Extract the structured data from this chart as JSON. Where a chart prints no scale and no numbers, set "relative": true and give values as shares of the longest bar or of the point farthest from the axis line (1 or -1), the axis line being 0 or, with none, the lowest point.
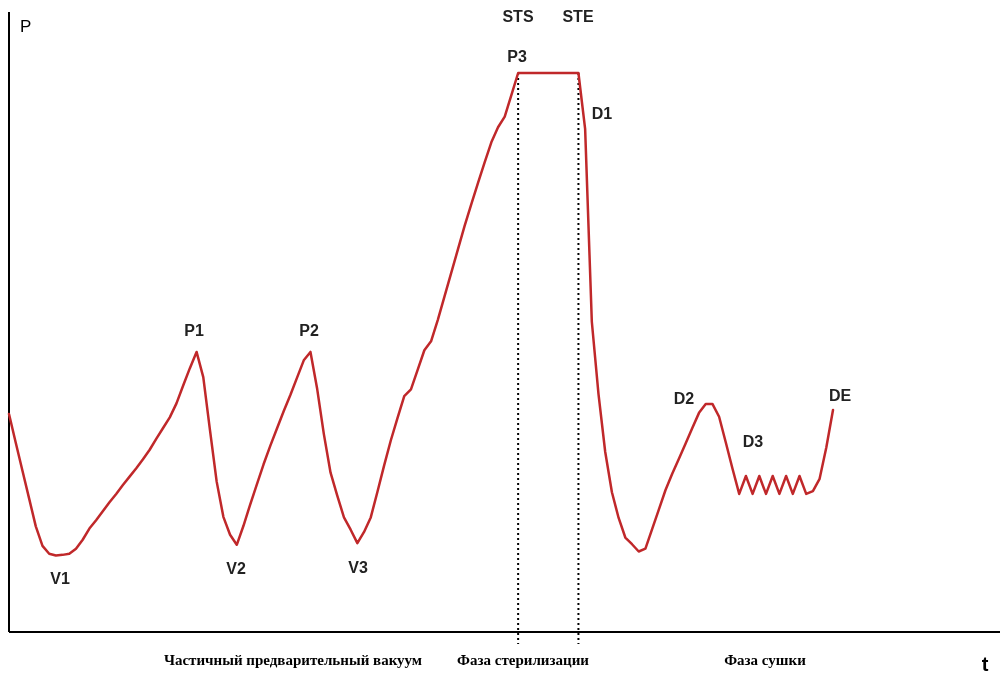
{
  "chart_data": {
    "type": "line",
    "relative": true,
    "ylabel": "P",
    "marker": "none",
    "line_style": "solid",
    "categories": [
      null,
      null,
      null,
      null,
      null,
      null,
      null,
      null,
      null,
      null,
      null,
      null,
      null,
      null,
      null,
      null,
      null,
      null,
      null,
      null,
      null,
      null,
      null,
      null,
      null,
      null,
      null,
      null,
      null,
      null,
      null,
      null,
      null,
      null,
      null,
      null,
      null,
      null,
      null,
      null,
      null,
      null,
      null,
      null,
      null,
      null,
      null,
      null,
      null,
      null,
      null,
      null,
      null,
      null,
      null,
      null,
      null,
      null,
      null,
      null,
      null,
      null,
      null,
      null,
      null,
      null,
      null,
      null,
      null,
      null,
      null,
      null,
      null,
      null,
      null,
      null,
      null,
      null,
      null,
      null,
      null,
      null,
      null,
      null,
      null,
      null,
      null,
      null,
      null,
      null,
      null,
      null,
      null,
      null,
      null,
      null,
      null,
      null,
      null,
      null,
      null,
      null,
      null,
      null,
      null,
      null,
      null,
      null,
      null,
      null,
      null,
      null,
      null,
      null,
      null,
      null,
      null,
      null,
      null,
      null,
      null,
      null,
      null,
      null
    ],
    "series": [
      {
        "color": "#c0282a",
        "values": [
          0.39,
          0.339,
          0.289,
          0.239,
          0.189,
          0.154,
          0.14,
          0.137,
          0.138,
          0.14,
          0.149,
          0.165,
          0.185,
          0.2,
          0.216,
          0.232,
          0.247,
          0.263,
          0.278,
          0.293,
          0.309,
          0.326,
          0.346,
          0.365,
          0.384,
          0.409,
          0.441,
          0.472,
          0.501,
          0.456,
          0.361,
          0.269,
          0.206,
          0.174,
          0.156,
          0.19,
          0.228,
          0.264,
          0.3,
          0.333,
          0.364,
          0.395,
          0.424,
          0.455,
          0.486,
          0.501,
          0.435,
          0.354,
          0.285,
          0.244,
          0.205,
          0.183,
          0.159,
          0.179,
          0.205,
          0.251,
          0.298,
          0.343,
          0.383,
          0.422,
          0.434,
          0.469,
          0.504,
          0.52,
          0.558,
          0.6,
          0.642,
          0.684,
          0.726,
          0.765,
          0.803,
          0.84,
          0.876,
          0.903,
          0.922,
          0.961,
          1,
          1,
          1,
          1,
          1,
          1,
          1,
          1,
          1,
          1,
          0.9,
          0.555,
          0.425,
          0.322,
          0.25,
          0.204,
          0.169,
          0.157,
          0.144,
          0.149,
          0.184,
          0.219,
          0.254,
          0.283,
          0.31,
          0.337,
          0.365,
          0.392,
          0.408,
          0.408,
          0.385,
          0.339,
          0.292,
          0.247,
          0.279,
          0.247,
          0.279,
          0.247,
          0.279,
          0.247,
          0.279,
          0.247,
          0.279,
          0.247,
          0.252,
          0.274,
          0.33,
          0.397
        ]
      }
    ],
    "annotations": [
      "P1",
      "P2",
      "V1",
      "V2",
      "V3",
      "P3",
      "D1",
      "D2",
      "D3",
      "DE",
      "STS",
      "STE",
      "t",
      "Частичный предварительный вакуум",
      "Фаза стерилизации",
      "Фаза сушки"
    ]
  }
}
